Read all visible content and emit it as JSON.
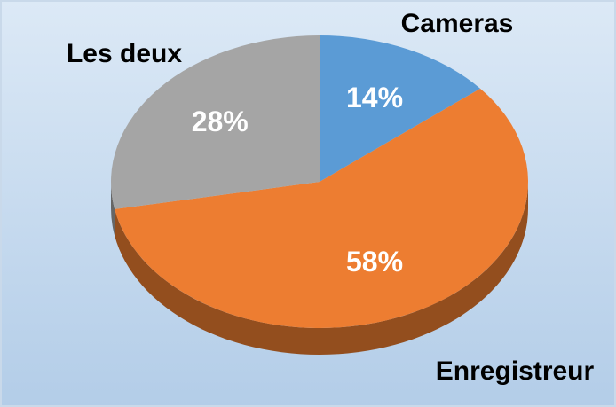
{
  "chart_data": {
    "type": "pie",
    "categories": [
      "Cameras",
      "Enregistreur",
      "Les deux"
    ],
    "values": [
      14,
      58,
      28
    ],
    "value_labels": [
      "14%",
      "58%",
      "28%"
    ],
    "colors": [
      "#5b9bd5",
      "#ed7d31",
      "#a5a5a5"
    ]
  }
}
